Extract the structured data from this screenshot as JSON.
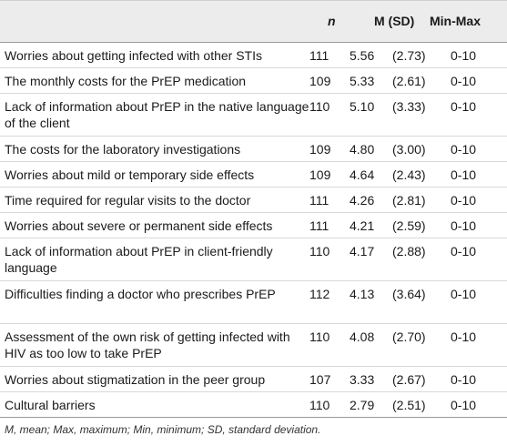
{
  "table": {
    "headers": {
      "n": "n",
      "m_sd": "M (SD)",
      "min_max": "Min-Max"
    },
    "rows": [
      {
        "label": "Worries about getting infected with other STIs",
        "n": "111",
        "m": "5.56",
        "sd": "(2.73)",
        "range": "0-10"
      },
      {
        "label": "The monthly costs for the PrEP medication",
        "n": "109",
        "m": "5.33",
        "sd": "(2.61)",
        "range": "0-10"
      },
      {
        "label": "Lack of information about PrEP in the native language of the client",
        "n": "110",
        "m": "5.10",
        "sd": "(3.33)",
        "range": "0-10"
      },
      {
        "label": "The costs for the laboratory investigations",
        "n": "109",
        "m": "4.80",
        "sd": "(3.00)",
        "range": "0-10"
      },
      {
        "label": "Worries about mild or temporary side effects",
        "n": "109",
        "m": "4.64",
        "sd": "(2.43)",
        "range": "0-10"
      },
      {
        "label": "Time required for regular visits to the doctor",
        "n": "111",
        "m": "4.26",
        "sd": "(2.81)",
        "range": "0-10"
      },
      {
        "label": "Worries about severe or permanent side effects",
        "n": "111",
        "m": "4.21",
        "sd": "(2.59)",
        "range": "0-10"
      },
      {
        "label": "Lack of information about PrEP in client-friendly language",
        "n": "110",
        "m": "4.17",
        "sd": "(2.88)",
        "range": "0-10"
      },
      {
        "label": "Difficulties finding a doctor who prescribes PrEP",
        "n": "112",
        "m": "4.13",
        "sd": "(3.64)",
        "range": "0-10"
      },
      {
        "label": "Assessment of the own risk of getting infected with HIV as too low to take PrEP",
        "n": "110",
        "m": "4.08",
        "sd": "(2.70)",
        "range": "0-10"
      },
      {
        "label": "Worries about stigmatization in the peer group",
        "n": "107",
        "m": "3.33",
        "sd": "(2.67)",
        "range": "0-10"
      },
      {
        "label": "Cultural barriers",
        "n": "110",
        "m": "2.79",
        "sd": "(2.51)",
        "range": "0-10"
      }
    ],
    "footnote": "M, mean; Max, maximum; Min, minimum; SD, standard deviation."
  }
}
